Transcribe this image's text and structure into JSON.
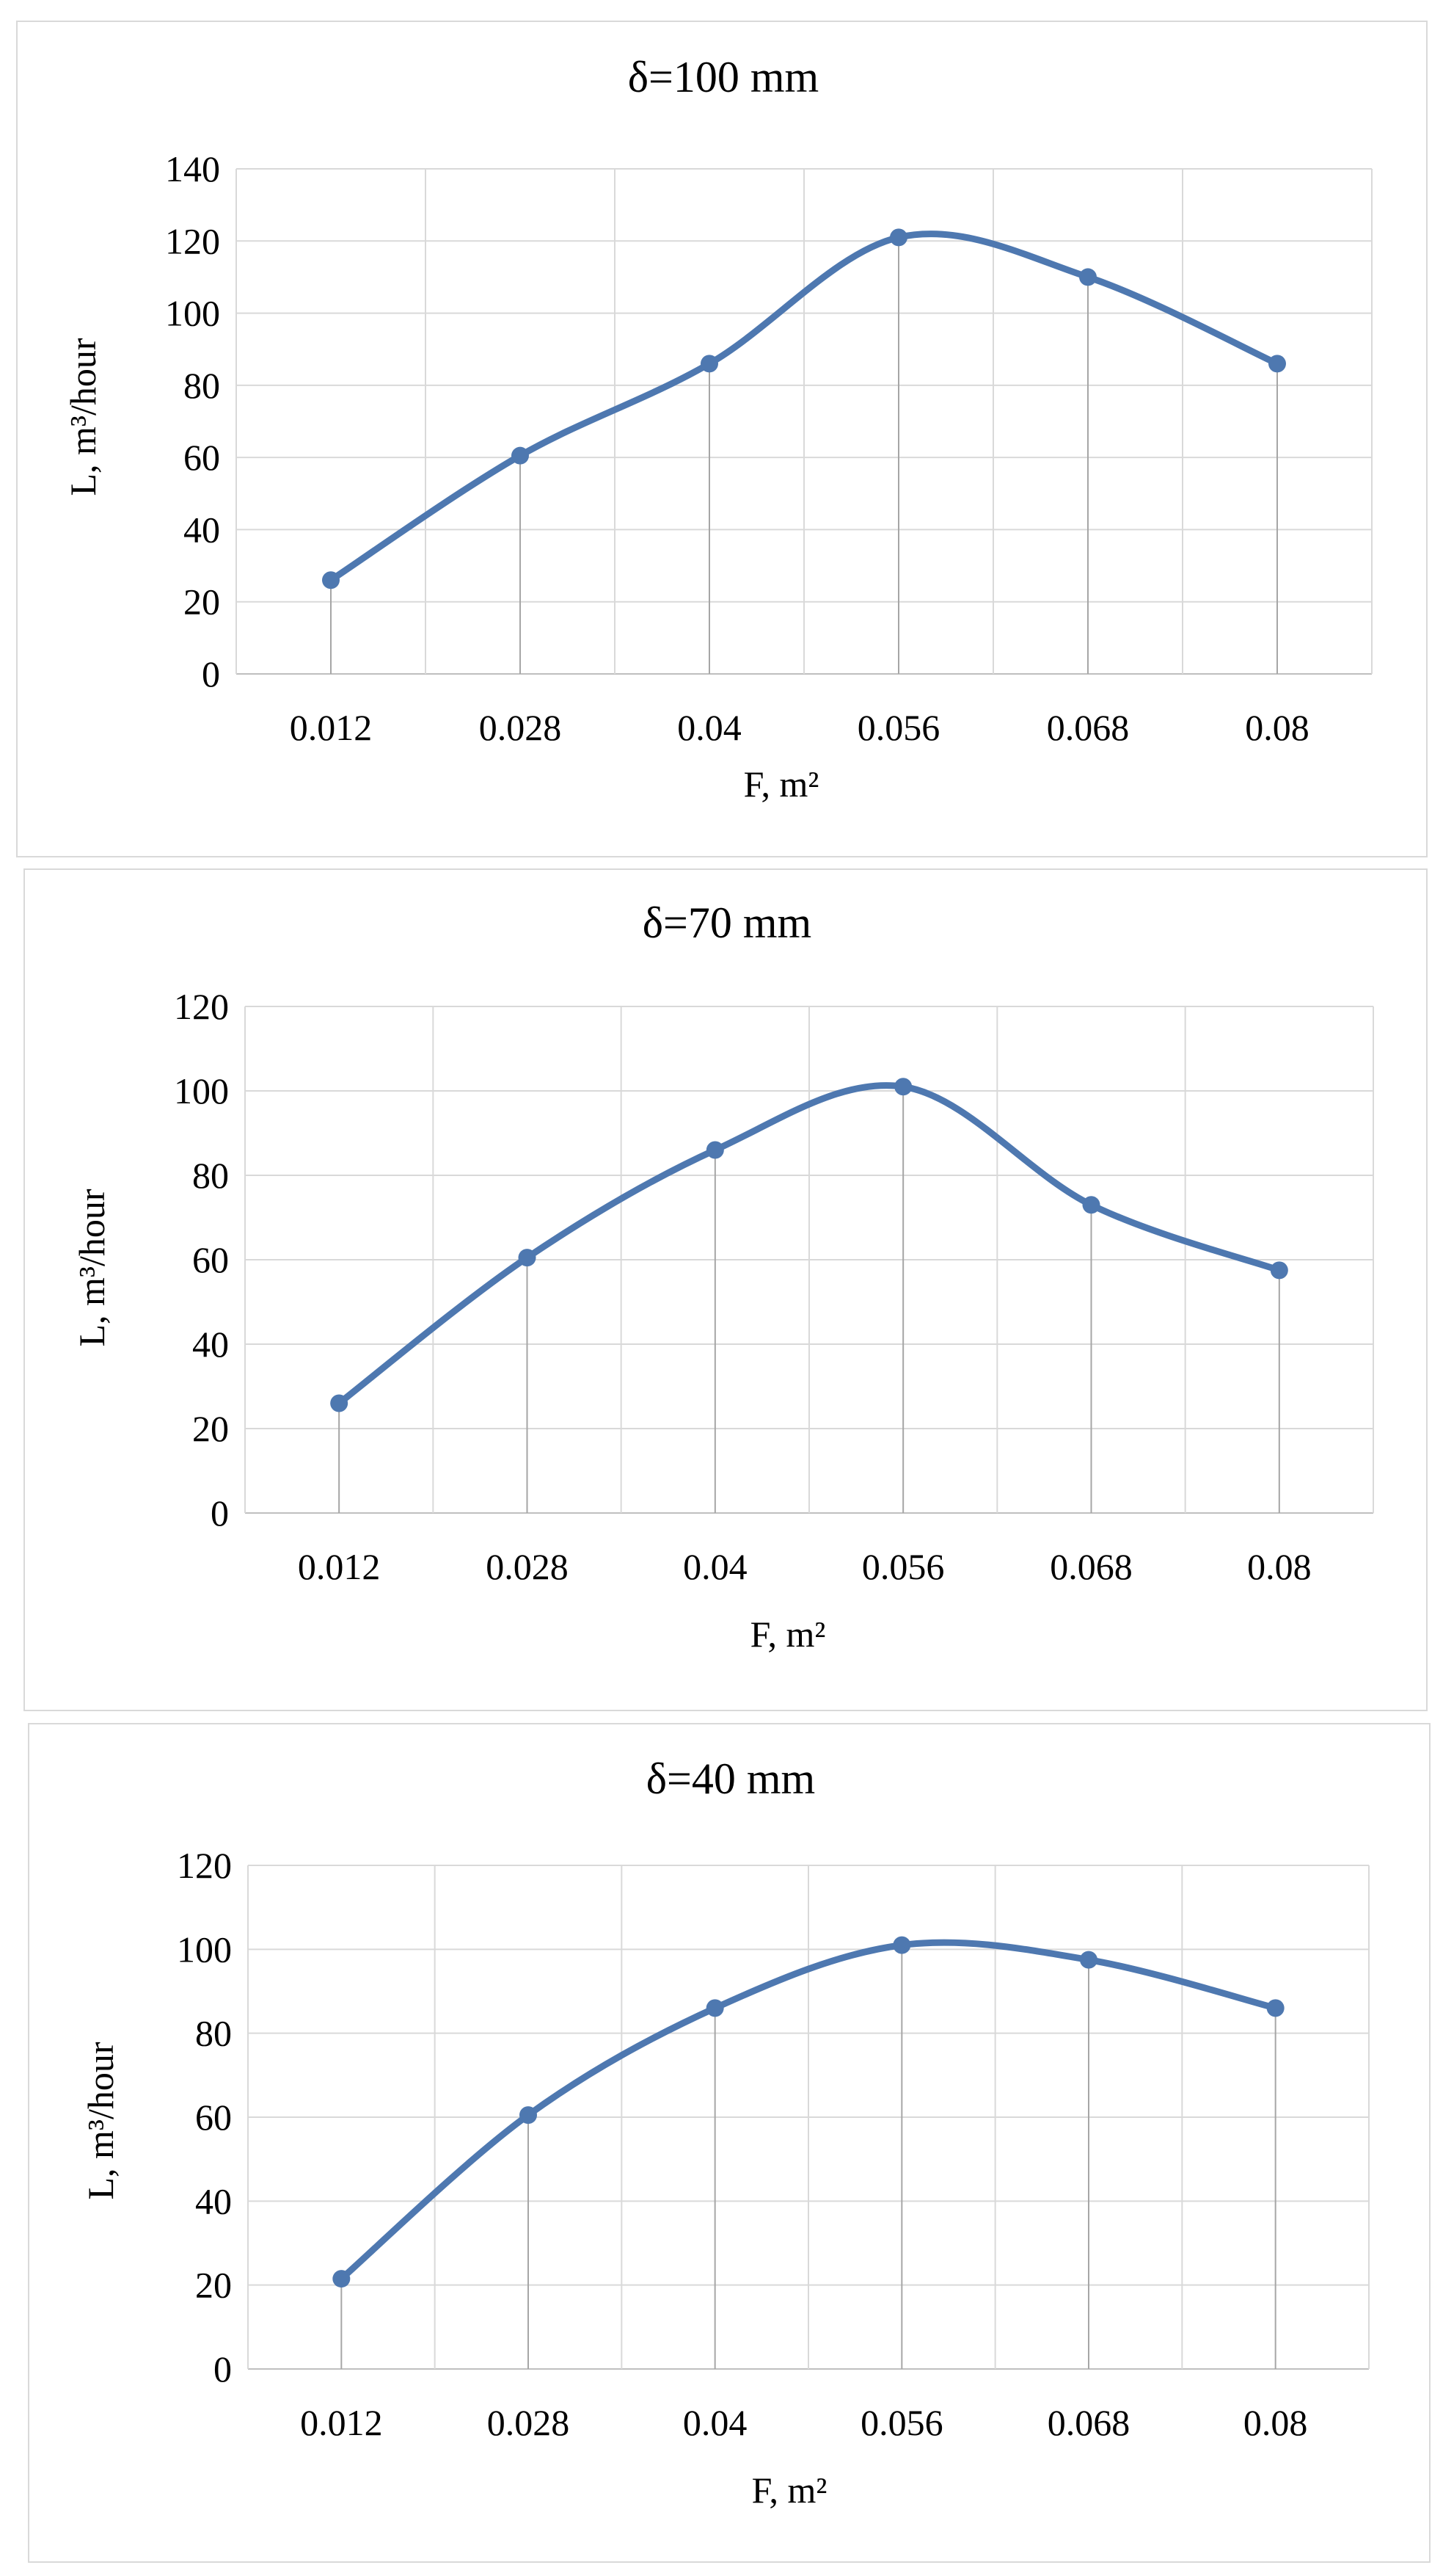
{
  "chart_data": [
    {
      "type": "line",
      "title": "δ=100 mm",
      "xlabel": "F, m²",
      "ylabel": "L, m³/hour",
      "categories": [
        "0.012",
        "0.028",
        "0.04",
        "0.056",
        "0.068",
        "0.08"
      ],
      "series": [
        {
          "name": "L",
          "values": [
            26,
            60.5,
            86,
            121,
            110,
            86
          ]
        }
      ],
      "ylim": [
        0,
        140
      ],
      "yticks": [
        0,
        20,
        40,
        60,
        80,
        100,
        120,
        140
      ],
      "grid": true,
      "smooth": true,
      "drop_lines": true,
      "color": "#4e78b0"
    },
    {
      "type": "line",
      "title": "δ=70 mm",
      "xlabel": "F, m²",
      "ylabel": "L, m³/hour",
      "categories": [
        "0.012",
        "0.028",
        "0.04",
        "0.056",
        "0.068",
        "0.08"
      ],
      "series": [
        {
          "name": "L",
          "values": [
            26,
            60.5,
            86,
            101,
            73,
            57.5
          ]
        }
      ],
      "ylim": [
        0,
        120
      ],
      "yticks": [
        0,
        20,
        40,
        60,
        80,
        100,
        120
      ],
      "grid": true,
      "smooth": true,
      "drop_lines": true,
      "color": "#4e78b0"
    },
    {
      "type": "line",
      "title": "δ=40 mm",
      "xlabel": "F, m²",
      "ylabel": "L, m³/hour",
      "categories": [
        "0.012",
        "0.028",
        "0.04",
        "0.056",
        "0.068",
        "0.08"
      ],
      "series": [
        {
          "name": "L",
          "values": [
            21.5,
            60.5,
            86,
            101,
            97.5,
            86
          ]
        }
      ],
      "ylim": [
        0,
        120
      ],
      "yticks": [
        0,
        20,
        40,
        60,
        80,
        100,
        120
      ],
      "grid": true,
      "smooth": true,
      "drop_lines": true,
      "color": "#4e78b0"
    }
  ]
}
